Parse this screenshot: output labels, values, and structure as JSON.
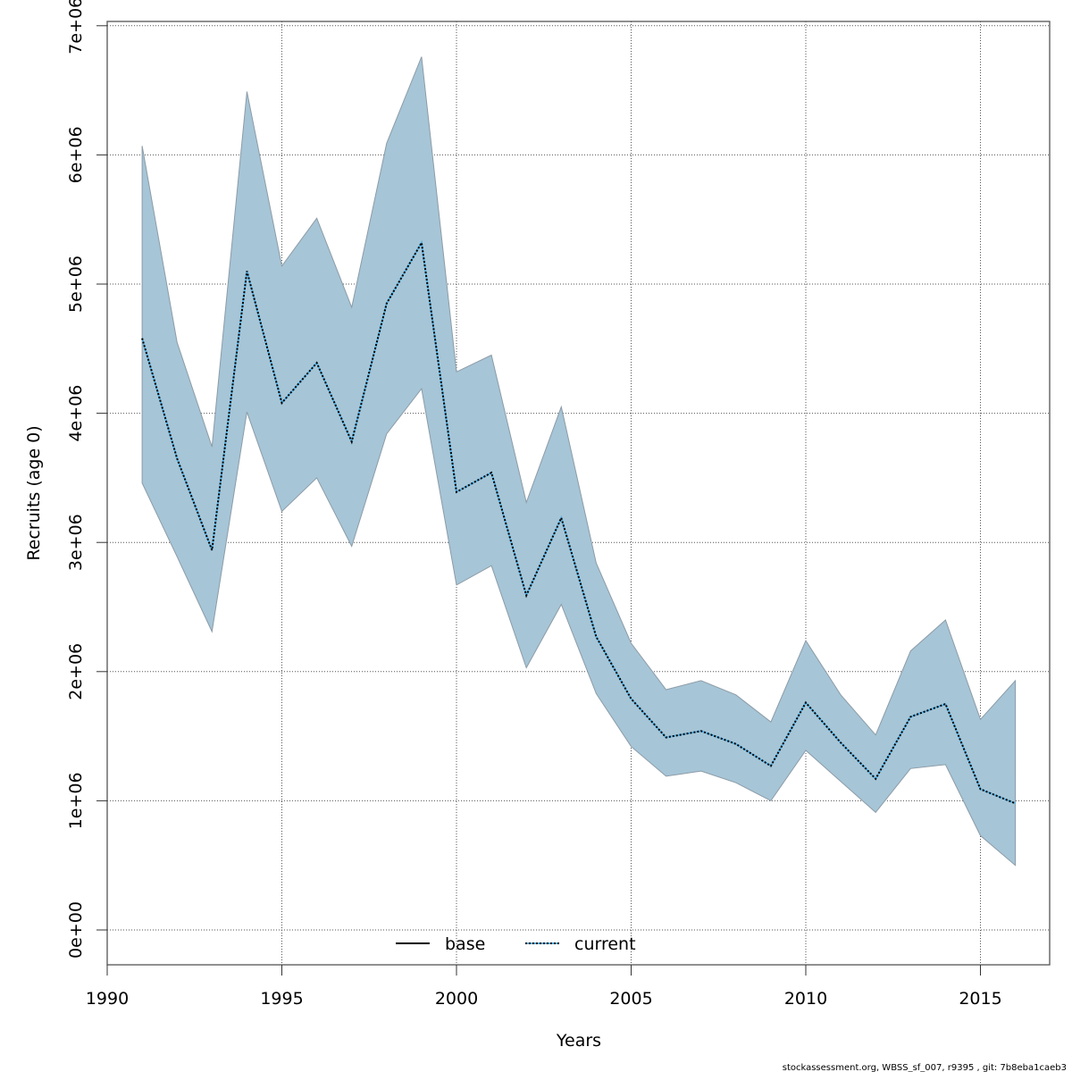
{
  "chart_data": {
    "type": "line",
    "title": "",
    "xlabel": "Years",
    "ylabel": "Recruits (age 0)",
    "xlim": [
      1990,
      2017
    ],
    "ylim": [
      -260000,
      7030000
    ],
    "grid": true,
    "x_ticks": [
      1990,
      1995,
      2000,
      2005,
      2010,
      2015
    ],
    "x_tick_labels": [
      "1990",
      "1995",
      "2000",
      "2005",
      "2010",
      "2015"
    ],
    "y_ticks": [
      0,
      1000000,
      2000000,
      3000000,
      4000000,
      5000000,
      6000000,
      7000000
    ],
    "y_tick_labels": [
      "0e+00",
      "1e+06",
      "2e+06",
      "3e+06",
      "4e+06",
      "5e+06",
      "6e+06",
      "7e+06"
    ],
    "x": [
      1991,
      1992,
      1993,
      1994,
      1995,
      1996,
      1997,
      1998,
      1999,
      2000,
      2001,
      2002,
      2003,
      2004,
      2005,
      2006,
      2007,
      2008,
      2009,
      2010,
      2011,
      2012,
      2013,
      2014,
      2015,
      2016
    ],
    "series": [
      {
        "name": "current",
        "style": "dotted",
        "color": "#000000",
        "underlay_color": "#56b4e9",
        "values": [
          4580000,
          3650000,
          2940000,
          5100000,
          4080000,
          4390000,
          3780000,
          4850000,
          5320000,
          3390000,
          3540000,
          2590000,
          3190000,
          2270000,
          1790000,
          1490000,
          1540000,
          1440000,
          1270000,
          1760000,
          1450000,
          1170000,
          1650000,
          1750000,
          1090000,
          980000
        ]
      }
    ],
    "confidence_band": {
      "name": "current CI",
      "fill_color": "#a6c5d6",
      "edge_color": "#8c9ca8",
      "upper": [
        6070000,
        4550000,
        3740000,
        6490000,
        5140000,
        5510000,
        4820000,
        6090000,
        6760000,
        4320000,
        4450000,
        3310000,
        4050000,
        2840000,
        2220000,
        1860000,
        1930000,
        1820000,
        1610000,
        2240000,
        1820000,
        1510000,
        2160000,
        2400000,
        1630000,
        1930000
      ],
      "lower": [
        3460000,
        2890000,
        2310000,
        4010000,
        3240000,
        3500000,
        2970000,
        3840000,
        4190000,
        2670000,
        2820000,
        2030000,
        2520000,
        1830000,
        1420000,
        1190000,
        1230000,
        1140000,
        1000000,
        1390000,
        1150000,
        910000,
        1250000,
        1280000,
        730000,
        500000
      ]
    },
    "legend": {
      "placement": "bottom-center",
      "entries": [
        {
          "label": "base",
          "style": "solid",
          "color": "#000000"
        },
        {
          "label": "current",
          "style": "dotted",
          "color": "#56b4e9"
        }
      ]
    }
  },
  "footnote": "stockassessment.org, WBSS_sf_007, r9395 , git: 7b8eba1caeb3"
}
